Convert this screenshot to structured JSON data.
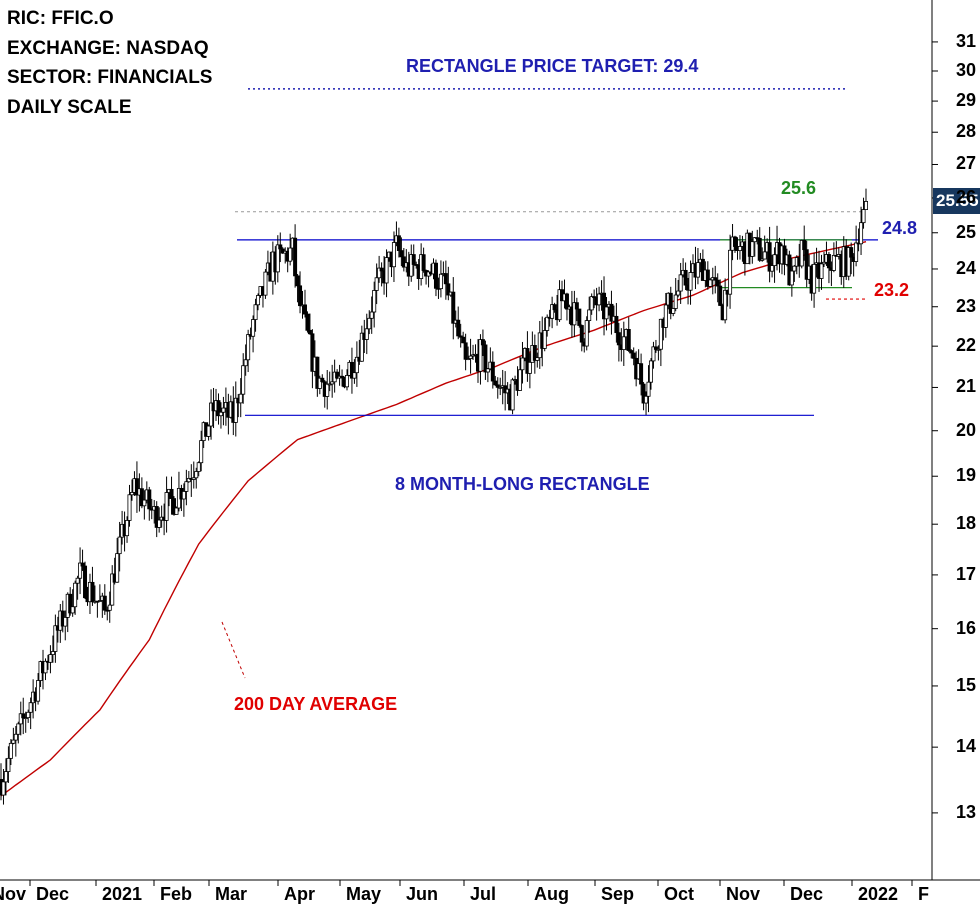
{
  "info": {
    "ric": "RIC: FFIC.O",
    "exchange": "EXCHANGE: NASDAQ",
    "sector": "SECTOR: FINANCIALS",
    "scale": "DAILY SCALE"
  },
  "annotations": {
    "price_target": "RECTANGLE PRICE TARGET: 29.4",
    "rectangle": "8 MONTH-LONG RECTANGLE",
    "ma": "200 DAY AVERAGE",
    "high_label": "25.6",
    "resistance_label": "24.8",
    "support_label": "23.2",
    "last_price": "25.55"
  },
  "colors": {
    "candle": "#000000",
    "ma": "#c00000",
    "rectangle": "#0000cc",
    "target": "#1f1fb0",
    "consolidation": "#228b22",
    "support_label": "#e00000",
    "price_tag_bg": "#17375e"
  },
  "chart_data": {
    "type": "candlestick",
    "y_scale": "log",
    "y_ticks": [
      13,
      14,
      15,
      16,
      17,
      18,
      19,
      20,
      21,
      22,
      23,
      24,
      25,
      26,
      27,
      28,
      29,
      30,
      31
    ],
    "x_ticks": [
      "Nov",
      "Dec",
      "2021",
      "Feb",
      "Mar",
      "Apr",
      "May",
      "Jun",
      "Jul",
      "Aug",
      "Sep",
      "Oct",
      "Nov",
      "Dec",
      "2022",
      "F"
    ],
    "ylim": [
      12.3,
      32.5
    ],
    "close_path": [
      [
        0,
        13.5
      ],
      [
        8,
        15.2
      ],
      [
        16,
        17.0
      ],
      [
        21,
        16.3
      ],
      [
        27,
        18.8
      ],
      [
        31,
        18.2
      ],
      [
        35,
        18.5
      ],
      [
        39,
        19.2
      ],
      [
        43,
        20.5
      ],
      [
        47,
        20.3
      ],
      [
        51,
        22.6
      ],
      [
        55,
        24.2
      ],
      [
        59,
        24.5
      ],
      [
        60,
        23.3
      ],
      [
        64,
        21.2
      ],
      [
        68,
        21.0
      ],
      [
        72,
        21.8
      ],
      [
        76,
        23.5
      ],
      [
        80,
        24.6
      ],
      [
        82,
        24.0
      ],
      [
        86,
        24.1
      ],
      [
        90,
        23.5
      ],
      [
        94,
        21.5
      ],
      [
        97,
        21.8
      ],
      [
        101,
        21.0
      ],
      [
        103,
        20.8
      ],
      [
        106,
        21.6
      ],
      [
        110,
        22.3
      ],
      [
        114,
        23.3
      ],
      [
        118,
        22.3
      ],
      [
        120,
        23.2
      ],
      [
        124,
        22.6
      ],
      [
        128,
        21.8
      ],
      [
        130,
        20.9
      ],
      [
        134,
        22.8
      ],
      [
        138,
        23.6
      ],
      [
        142,
        24.1
      ],
      [
        146,
        23.0
      ],
      [
        148,
        24.5
      ],
      [
        152,
        24.6
      ],
      [
        156,
        24.3
      ],
      [
        158,
        24.6
      ],
      [
        160,
        23.6
      ],
      [
        162,
        24.4
      ],
      [
        164,
        23.7
      ],
      [
        168,
        24.2
      ],
      [
        172,
        24.2
      ],
      [
        174,
        25.4
      ],
      [
        175,
        25.55
      ]
    ],
    "ma_path": [
      [
        0,
        13.25
      ],
      [
        10,
        13.8
      ],
      [
        20,
        14.6
      ],
      [
        30,
        15.8
      ],
      [
        40,
        17.6
      ],
      [
        50,
        18.9
      ],
      [
        60,
        19.8
      ],
      [
        70,
        20.2
      ],
      [
        80,
        20.6
      ],
      [
        90,
        21.1
      ],
      [
        100,
        21.5
      ],
      [
        110,
        22.0
      ],
      [
        120,
        22.4
      ],
      [
        130,
        22.9
      ],
      [
        140,
        23.3
      ],
      [
        150,
        23.9
      ],
      [
        160,
        24.3
      ],
      [
        175,
        24.75
      ]
    ],
    "levels": {
      "rectangle_top": 24.8,
      "rectangle_bottom": 20.35,
      "price_target": 29.4,
      "recent_high": 25.6,
      "consolidation_top": 24.8,
      "consolidation_bottom": 23.5,
      "consolidation_low": 23.2
    },
    "last_close": 25.55
  }
}
